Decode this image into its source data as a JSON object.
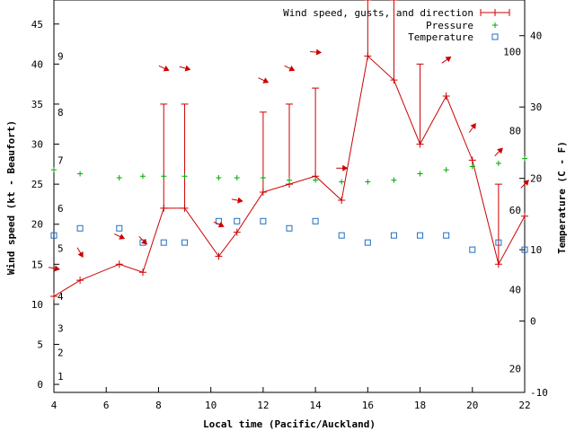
{
  "chart_data": {
    "type": "line",
    "xlabel": "Local time (Pacific/Auckland)",
    "ylabel_left": "Wind speed (kt - Beaufort)",
    "ylabel_right": "Temperature (C - F)",
    "x_range": [
      4,
      22
    ],
    "x_ticks": [
      "4",
      "6",
      "8",
      "10",
      "12",
      "14",
      "16",
      "18",
      "20",
      "22"
    ],
    "y_left_range": [
      -1,
      48
    ],
    "y_left_ticks": [
      "0",
      "5",
      "10",
      "15",
      "20",
      "25",
      "30",
      "35",
      "40",
      "45"
    ],
    "beaufort_labels": [
      {
        "label": "1",
        "y": 1
      },
      {
        "label": "2",
        "y": 4
      },
      {
        "label": "3",
        "y": 7
      },
      {
        "label": "4",
        "y": 11
      },
      {
        "label": "5",
        "y": 17
      },
      {
        "label": "6",
        "y": 22
      },
      {
        "label": "7",
        "y": 28
      },
      {
        "label": "8",
        "y": 34
      },
      {
        "label": "9",
        "y": 41
      }
    ],
    "temp_c_range": [
      -10,
      45
    ],
    "temp_c_ticks": [
      "-10",
      "0",
      "10",
      "20",
      "30",
      "40"
    ],
    "temp_f_labels": [
      {
        "label": "20",
        "c": -6.67
      },
      {
        "label": "40",
        "c": 4.44
      },
      {
        "label": "60",
        "c": 15.56
      },
      {
        "label": "80",
        "c": 26.67
      },
      {
        "label": "100",
        "c": 37.78
      }
    ],
    "legend_position": "top-right",
    "series": [
      {
        "name": "Wind speed, gusts, and direction",
        "color": "#cc0000",
        "x": [
          4,
          5,
          6.5,
          7.4,
          8.2,
          9,
          10.3,
          11,
          12,
          13,
          14,
          15,
          16,
          17,
          18,
          19,
          20,
          21,
          22
        ],
        "values": [
          11,
          13,
          15,
          14,
          22,
          22,
          16,
          19,
          24,
          25,
          26,
          23,
          41,
          38,
          30,
          36,
          28,
          15,
          21
        ],
        "gusts": [
          null,
          null,
          null,
          null,
          35,
          35,
          null,
          null,
          34,
          35,
          37,
          null,
          48,
          48,
          40,
          null,
          null,
          25,
          null
        ],
        "direction_arrows": [
          {
            "x": 4,
            "y": 14.5,
            "angle": 10
          },
          {
            "x": 5,
            "y": 16.5,
            "angle": 60
          },
          {
            "x": 6.5,
            "y": 18.5,
            "angle": 25
          },
          {
            "x": 7.4,
            "y": 18,
            "angle": 45
          },
          {
            "x": 8.2,
            "y": 39.5,
            "angle": 25
          },
          {
            "x": 9,
            "y": 39.5,
            "angle": 15
          },
          {
            "x": 10.3,
            "y": 20,
            "angle": 25
          },
          {
            "x": 11,
            "y": 23,
            "angle": 10
          },
          {
            "x": 12,
            "y": 38,
            "angle": 25
          },
          {
            "x": 13,
            "y": 39.5,
            "angle": 25
          },
          {
            "x": 14,
            "y": 41.5,
            "angle": 5
          },
          {
            "x": 15,
            "y": 27,
            "angle": 0
          },
          {
            "x": 19,
            "y": 40.5,
            "angle": -35
          },
          {
            "x": 20,
            "y": 32,
            "angle": -55
          },
          {
            "x": 21,
            "y": 29,
            "angle": -45
          },
          {
            "x": 22,
            "y": 25,
            "angle": -45
          }
        ]
      },
      {
        "name": "Pressure",
        "color": "#00aa00",
        "x": [
          4,
          5,
          6.5,
          7.4,
          8.2,
          9,
          10.3,
          11,
          12,
          13,
          14,
          15,
          16,
          17,
          18,
          19,
          20,
          21,
          22
        ],
        "values": [
          26.8,
          26.3,
          25.8,
          26.0,
          26.0,
          26.0,
          25.8,
          25.8,
          25.8,
          25.5,
          25.5,
          25.3,
          25.3,
          25.5,
          26.3,
          26.8,
          27.2,
          27.6,
          28.2
        ]
      },
      {
        "name": "Temperature",
        "color": "#1f6fc6",
        "x": [
          4,
          5,
          6.5,
          7.4,
          8.2,
          9,
          10.3,
          11,
          12,
          13,
          14,
          15,
          16,
          17,
          18,
          19,
          20,
          21,
          22
        ],
        "values": [
          12,
          13,
          13,
          11,
          11,
          11,
          14,
          14,
          14,
          13,
          14,
          12,
          11,
          12,
          12,
          12,
          10,
          11,
          10
        ]
      }
    ]
  }
}
